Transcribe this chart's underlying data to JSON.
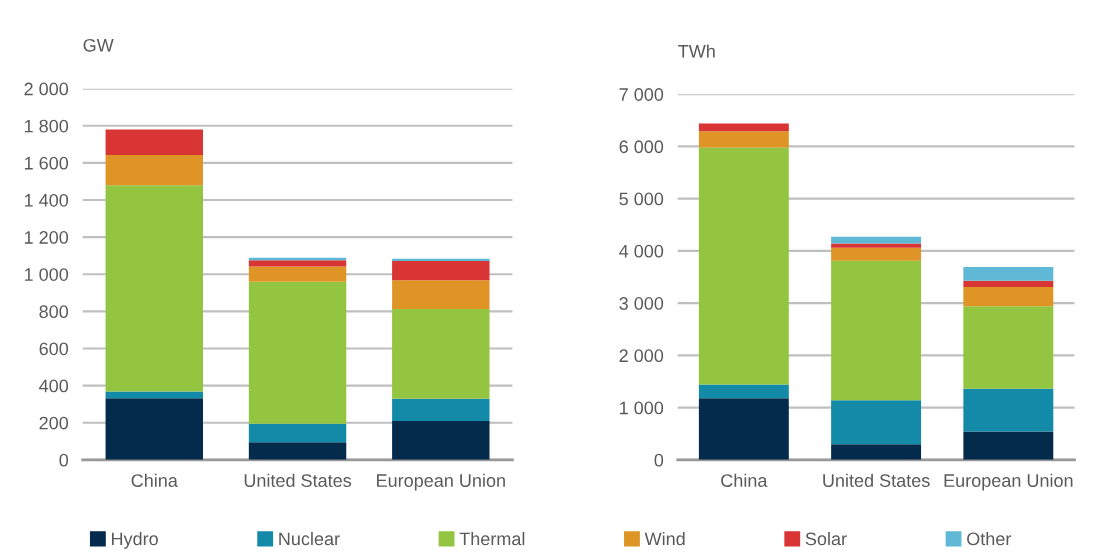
{
  "chart_data": [
    {
      "type": "bar",
      "stacked": true,
      "ylabel": "GW",
      "categories": [
        "China",
        "United States",
        "European Union"
      ],
      "ylim": [
        0,
        2000
      ],
      "yticks": [
        0,
        {
          "value": 200,
          "label": "200"
        },
        {
          "value": 400,
          "label": "400"
        },
        {
          "value": 600,
          "label": "600"
        },
        {
          "value": 800,
          "label": "800"
        },
        {
          "value": 1000,
          "label": "1 000"
        },
        {
          "value": 1200,
          "label": "1 200"
        },
        {
          "value": 1400,
          "label": "1 400"
        },
        {
          "value": 1600,
          "label": "1 600"
        },
        {
          "value": 1800,
          "label": "1 800"
        },
        {
          "value": 2000,
          "label": "2 000"
        }
      ],
      "grid": "y",
      "legend": "bottom",
      "series": [
        {
          "name": "Hydro",
          "color": "#052b4c",
          "values": [
            332,
            94,
            209
          ]
        },
        {
          "name": "Nuclear",
          "color": "#138aa8",
          "values": [
            36,
            100,
            120
          ]
        },
        {
          "name": "Thermal",
          "color": "#93c540",
          "values": [
            1111,
            766,
            484
          ]
        },
        {
          "name": "Wind",
          "color": "#df9526",
          "values": [
            164,
            82,
            154
          ]
        },
        {
          "name": "Solar",
          "color": "#d93535",
          "values": [
            137,
            34,
            104
          ]
        },
        {
          "name": "Other",
          "color": "#5fb8d5",
          "values": [
            0,
            13,
            13
          ]
        }
      ]
    },
    {
      "type": "bar",
      "stacked": true,
      "ylabel": "TWh",
      "categories": [
        "China",
        "United States",
        "European Union"
      ],
      "ylim": [
        0,
        7000
      ],
      "yticks": [
        0,
        {
          "value": 1000,
          "label": "1 000"
        },
        {
          "value": 2000,
          "label": "2 000"
        },
        {
          "value": 3000,
          "label": "3 000"
        },
        {
          "value": 4000,
          "label": "4 000"
        },
        {
          "value": 5000,
          "label": "5 000"
        },
        {
          "value": 6000,
          "label": "6 000"
        },
        {
          "value": 7000,
          "label": "7 000"
        }
      ],
      "grid": "y",
      "series": [
        {
          "color": "#052b4c",
          "values": [
            1180,
            300,
            540
          ]
        },
        {
          "color": "#138aa8",
          "values": [
            260,
            840,
            820
          ]
        },
        {
          "color": "#93c540",
          "values": [
            4540,
            2670,
            1580
          ]
        },
        {
          "color": "#df9526",
          "values": [
            310,
            250,
            370
          ]
        },
        {
          "color": "#d93535",
          "values": [
            150,
            80,
            120
          ]
        },
        {
          "color": "#5fb8d5",
          "values": [
            0,
            130,
            260
          ]
        }
      ]
    }
  ]
}
